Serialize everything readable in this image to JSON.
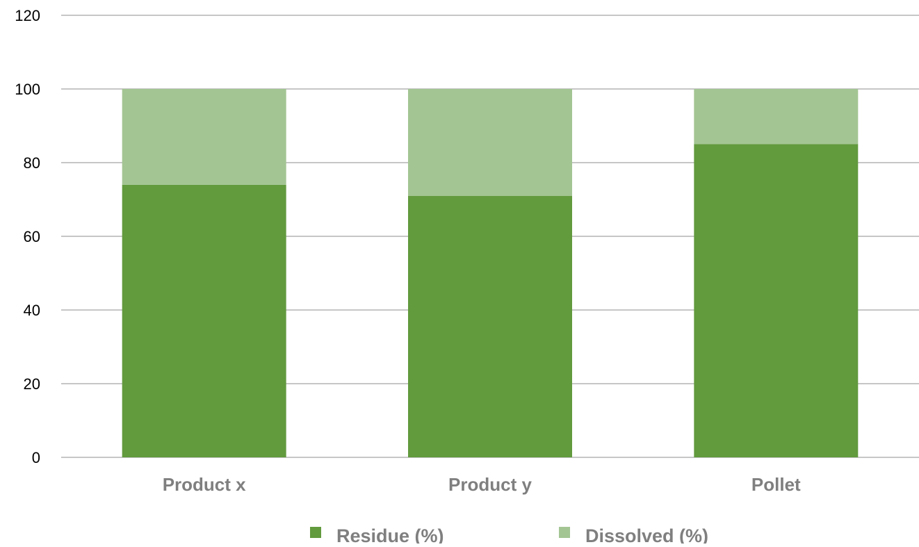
{
  "chart_data": {
    "type": "bar",
    "stacked": true,
    "categories": [
      "Product x",
      "Product y",
      "Pollet"
    ],
    "series": [
      {
        "name": "Residue (%)",
        "values": [
          74,
          71,
          85
        ],
        "color": "#629a3e"
      },
      {
        "name": "Dissolved (%)",
        "values": [
          26,
          29,
          15
        ],
        "color": "#a3c593"
      }
    ],
    "title": "",
    "xlabel": "",
    "ylabel": "",
    "ylim": [
      0,
      120
    ],
    "yticks": [
      "0",
      "20",
      "40",
      "60",
      "80",
      "100",
      "120"
    ],
    "grid": true,
    "legend_position": "bottom"
  }
}
